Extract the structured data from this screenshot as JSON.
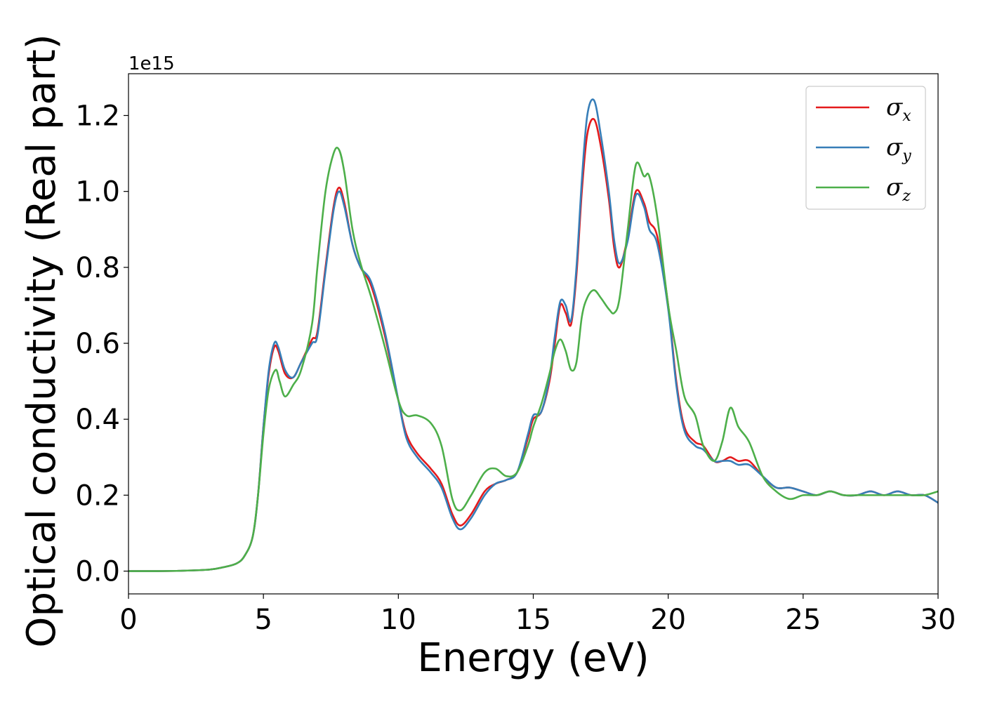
{
  "chart_data": {
    "type": "line",
    "xlabel": "Energy (eV)",
    "ylabel": "Optical conductivity (Real part)",
    "y_offset_text": "1e15",
    "xlim": [
      0,
      30
    ],
    "ylim": [
      -0.06,
      1.31
    ],
    "xticks": [
      0,
      5,
      10,
      15,
      20,
      25,
      30
    ],
    "xtick_labels": [
      "0",
      "5",
      "10",
      "15",
      "20",
      "25",
      "30"
    ],
    "yticks": [
      0.0,
      0.2,
      0.4,
      0.6,
      0.8,
      1.0,
      1.2
    ],
    "ytick_labels": [
      "0.0",
      "0.2",
      "0.4",
      "0.6",
      "0.8",
      "1.0",
      "1.2"
    ],
    "grid": false,
    "legend_position": "top-right",
    "series": [
      {
        "name": "σx",
        "symbol": "σ",
        "subscript": "x",
        "color": "#e41a1c",
        "x": [
          0,
          1,
          2,
          3,
          3.5,
          4,
          4.3,
          4.6,
          4.8,
          5.0,
          5.2,
          5.4,
          5.55,
          5.8,
          6.1,
          6.4,
          6.8,
          7.0,
          7.3,
          7.6,
          7.8,
          8.0,
          8.3,
          8.6,
          9.0,
          9.5,
          10.0,
          10.3,
          10.7,
          11.2,
          11.6,
          12.0,
          12.3,
          12.7,
          13.2,
          13.6,
          14.0,
          14.4,
          14.8,
          15.0,
          15.3,
          15.6,
          15.8,
          16.0,
          16.2,
          16.4,
          16.6,
          16.8,
          17.0,
          17.25,
          17.5,
          17.8,
          18.0,
          18.2,
          18.5,
          18.8,
          19.1,
          19.3,
          19.6,
          20.0,
          20.3,
          20.6,
          21.0,
          21.3,
          21.7,
          22.0,
          22.3,
          22.6,
          23.0,
          23.5,
          24.0,
          24.5,
          25.0,
          25.5,
          26.0,
          26.5,
          27.0,
          27.5,
          28.0,
          28.5,
          29.0,
          29.5,
          30.0
        ],
        "y": [
          0.0,
          0.0,
          0.001,
          0.004,
          0.01,
          0.02,
          0.04,
          0.09,
          0.2,
          0.38,
          0.52,
          0.59,
          0.58,
          0.52,
          0.51,
          0.55,
          0.61,
          0.63,
          0.8,
          0.96,
          1.01,
          0.97,
          0.86,
          0.8,
          0.75,
          0.62,
          0.45,
          0.36,
          0.31,
          0.27,
          0.23,
          0.15,
          0.12,
          0.15,
          0.21,
          0.23,
          0.24,
          0.26,
          0.35,
          0.4,
          0.42,
          0.5,
          0.6,
          0.7,
          0.68,
          0.65,
          0.78,
          1.0,
          1.15,
          1.19,
          1.12,
          0.98,
          0.85,
          0.8,
          0.88,
          1.0,
          0.97,
          0.92,
          0.88,
          0.7,
          0.5,
          0.38,
          0.34,
          0.33,
          0.29,
          0.29,
          0.3,
          0.29,
          0.29,
          0.25,
          0.22,
          0.22,
          0.21,
          0.2,
          0.21,
          0.2,
          0.2,
          0.21,
          0.2,
          0.21,
          0.2,
          0.2,
          0.18
        ]
      },
      {
        "name": "σy",
        "symbol": "σ",
        "subscript": "y",
        "color": "#377eb8",
        "x": [
          0,
          1,
          2,
          3,
          3.5,
          4,
          4.3,
          4.6,
          4.8,
          5.0,
          5.2,
          5.4,
          5.55,
          5.8,
          6.1,
          6.4,
          6.8,
          7.0,
          7.3,
          7.6,
          7.8,
          8.0,
          8.3,
          8.6,
          9.0,
          9.5,
          10.0,
          10.3,
          10.7,
          11.2,
          11.6,
          12.0,
          12.3,
          12.7,
          13.2,
          13.6,
          14.0,
          14.4,
          14.8,
          15.0,
          15.3,
          15.6,
          15.8,
          16.0,
          16.2,
          16.4,
          16.6,
          16.8,
          17.0,
          17.25,
          17.5,
          17.8,
          18.0,
          18.2,
          18.5,
          18.8,
          19.1,
          19.3,
          19.6,
          20.0,
          20.3,
          20.6,
          21.0,
          21.3,
          21.7,
          22.0,
          22.3,
          22.6,
          23.0,
          23.5,
          24.0,
          24.5,
          25.0,
          25.5,
          26.0,
          26.5,
          27.0,
          27.5,
          28.0,
          28.5,
          29.0,
          29.5,
          30.0
        ],
        "y": [
          0.0,
          0.0,
          0.001,
          0.004,
          0.01,
          0.02,
          0.04,
          0.09,
          0.2,
          0.38,
          0.53,
          0.6,
          0.59,
          0.53,
          0.51,
          0.55,
          0.6,
          0.62,
          0.79,
          0.95,
          1.0,
          0.96,
          0.86,
          0.8,
          0.76,
          0.63,
          0.45,
          0.35,
          0.3,
          0.26,
          0.22,
          0.14,
          0.11,
          0.14,
          0.2,
          0.23,
          0.24,
          0.26,
          0.36,
          0.41,
          0.42,
          0.51,
          0.62,
          0.71,
          0.7,
          0.66,
          0.8,
          1.03,
          1.2,
          1.24,
          1.15,
          1.0,
          0.87,
          0.81,
          0.87,
          0.99,
          0.96,
          0.9,
          0.86,
          0.69,
          0.49,
          0.37,
          0.33,
          0.32,
          0.29,
          0.29,
          0.29,
          0.28,
          0.28,
          0.25,
          0.22,
          0.22,
          0.21,
          0.2,
          0.21,
          0.2,
          0.2,
          0.21,
          0.2,
          0.21,
          0.2,
          0.2,
          0.18
        ]
      },
      {
        "name": "σz",
        "symbol": "σ",
        "subscript": "z",
        "color": "#4daf4a",
        "x": [
          0,
          1,
          2,
          3,
          3.5,
          4,
          4.3,
          4.6,
          4.8,
          5.0,
          5.2,
          5.45,
          5.6,
          5.8,
          6.1,
          6.4,
          6.8,
          7.0,
          7.3,
          7.6,
          7.8,
          8.0,
          8.3,
          8.6,
          9.0,
          9.5,
          10.0,
          10.3,
          10.7,
          11.2,
          11.6,
          12.0,
          12.3,
          12.7,
          13.2,
          13.6,
          14.0,
          14.4,
          14.8,
          15.0,
          15.3,
          15.6,
          15.8,
          16.0,
          16.2,
          16.4,
          16.6,
          16.8,
          17.0,
          17.25,
          17.5,
          17.8,
          18.0,
          18.2,
          18.5,
          18.8,
          19.1,
          19.3,
          19.6,
          20.0,
          20.3,
          20.6,
          21.0,
          21.3,
          21.7,
          22.0,
          22.3,
          22.6,
          23.0,
          23.5,
          24.0,
          24.5,
          25.0,
          25.5,
          26.0,
          26.5,
          27.0,
          27.5,
          28.0,
          28.5,
          29.0,
          29.5,
          30.0
        ],
        "y": [
          0.0,
          0.0,
          0.001,
          0.004,
          0.01,
          0.02,
          0.04,
          0.09,
          0.2,
          0.36,
          0.48,
          0.53,
          0.5,
          0.46,
          0.49,
          0.53,
          0.65,
          0.8,
          1.0,
          1.1,
          1.11,
          1.05,
          0.9,
          0.81,
          0.72,
          0.59,
          0.45,
          0.41,
          0.41,
          0.39,
          0.33,
          0.19,
          0.16,
          0.2,
          0.26,
          0.27,
          0.25,
          0.26,
          0.33,
          0.38,
          0.44,
          0.52,
          0.58,
          0.61,
          0.58,
          0.53,
          0.55,
          0.67,
          0.72,
          0.74,
          0.72,
          0.69,
          0.68,
          0.72,
          0.9,
          1.07,
          1.04,
          1.04,
          0.93,
          0.7,
          0.58,
          0.46,
          0.41,
          0.33,
          0.29,
          0.34,
          0.43,
          0.38,
          0.34,
          0.25,
          0.21,
          0.19,
          0.2,
          0.2,
          0.21,
          0.2,
          0.2,
          0.2,
          0.2,
          0.2,
          0.2,
          0.2,
          0.21
        ]
      }
    ]
  }
}
